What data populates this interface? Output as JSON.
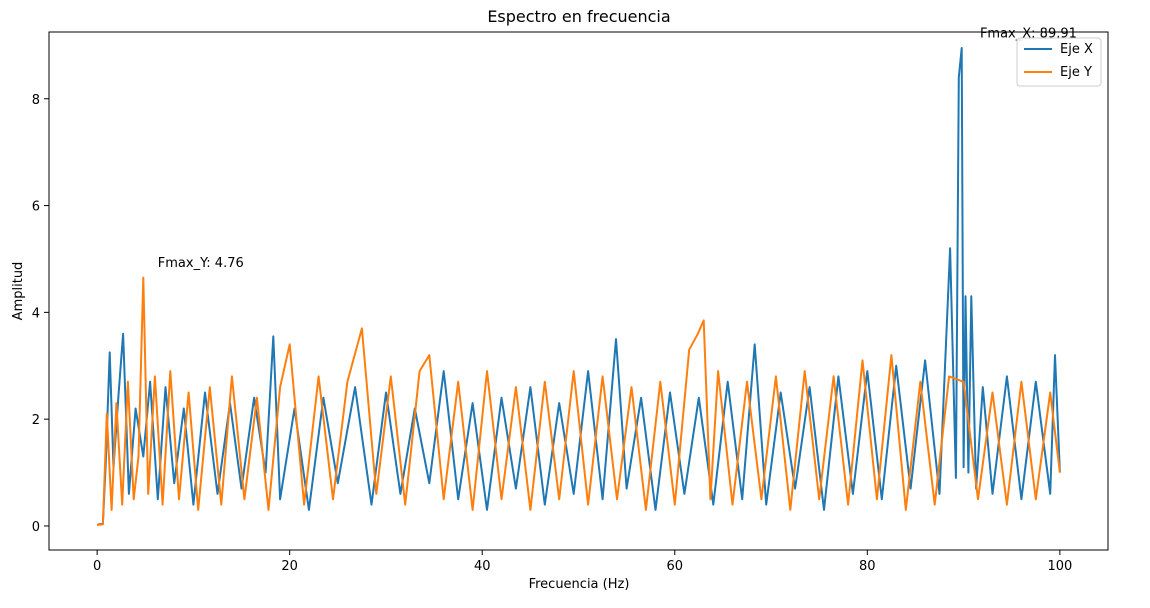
{
  "chart_data": {
    "type": "line",
    "title": "Espectro en frecuencia",
    "xlabel": "Frecuencia (Hz)",
    "ylabel": "Amplitud",
    "xlim": [
      -5,
      105
    ],
    "ylim": [
      -0.45,
      9.25
    ],
    "xticks": [
      0,
      20,
      40,
      60,
      80,
      100
    ],
    "yticks": [
      0,
      2,
      4,
      6,
      8
    ],
    "xtick_labels": [
      "0",
      "20",
      "40",
      "60",
      "80",
      "100"
    ],
    "ytick_labels": [
      "0",
      "2",
      "4",
      "6",
      "8"
    ],
    "grid": false,
    "legend_position": "top-right",
    "series": [
      {
        "name": "Eje X",
        "color": "#1f77b4",
        "x": [
          0,
          0.6,
          0.9,
          1.3,
          1.7,
          2.2,
          2.7,
          3.3,
          4.0,
          4.8,
          5.5,
          6.3,
          7.1,
          8.0,
          9.0,
          10.0,
          11.2,
          12.5,
          13.8,
          15.0,
          16.3,
          17.5,
          18.3,
          19.0,
          20.5,
          22.0,
          23.5,
          25.0,
          26.8,
          28.5,
          30.0,
          31.5,
          33.0,
          34.5,
          36.0,
          37.5,
          39.0,
          40.5,
          42.0,
          43.5,
          45.0,
          46.5,
          48.0,
          49.5,
          51.0,
          52.5,
          53.9,
          55.0,
          56.5,
          58.0,
          59.5,
          61.0,
          62.5,
          64.0,
          65.5,
          67.0,
          68.3,
          69.5,
          71.0,
          72.5,
          74.0,
          75.5,
          77.0,
          78.5,
          80.0,
          81.5,
          83.0,
          84.5,
          86.0,
          87.5,
          88.6,
          89.2,
          89.5,
          89.8,
          90.0,
          90.2,
          90.5,
          90.8,
          91.3,
          92.0,
          93.0,
          94.5,
          96.0,
          97.5,
          99.0,
          99.5,
          100.0
        ],
        "y": [
          0.02,
          0.05,
          1.2,
          3.25,
          1.1,
          2.4,
          3.6,
          0.6,
          2.2,
          1.3,
          2.7,
          0.5,
          2.6,
          0.8,
          2.2,
          0.4,
          2.5,
          0.6,
          2.3,
          0.7,
          2.4,
          1.0,
          3.55,
          0.5,
          2.2,
          0.3,
          2.4,
          0.8,
          2.6,
          0.4,
          2.5,
          0.6,
          2.2,
          0.8,
          2.9,
          0.5,
          2.3,
          0.3,
          2.4,
          0.7,
          2.6,
          0.4,
          2.3,
          0.6,
          2.9,
          0.5,
          3.5,
          0.7,
          2.4,
          0.3,
          2.5,
          0.6,
          2.4,
          0.4,
          2.7,
          0.5,
          3.4,
          0.4,
          2.5,
          0.7,
          2.6,
          0.3,
          2.8,
          0.6,
          2.9,
          0.5,
          3.0,
          0.7,
          3.1,
          0.6,
          5.2,
          0.9,
          8.4,
          8.95,
          1.1,
          4.3,
          1.0,
          4.3,
          0.7,
          2.6,
          0.6,
          2.8,
          0.5,
          2.7,
          0.6,
          3.2,
          1.0
        ]
      },
      {
        "name": "Eje Y",
        "color": "#ff7f0e",
        "x": [
          0,
          0.6,
          1.0,
          1.5,
          2.0,
          2.6,
          3.2,
          3.8,
          4.3,
          4.8,
          5.3,
          6.0,
          6.8,
          7.6,
          8.5,
          9.5,
          10.5,
          11.7,
          12.9,
          14.0,
          15.3,
          16.6,
          17.8,
          19.0,
          20.0,
          21.5,
          23.0,
          24.5,
          26.0,
          27.5,
          29.0,
          30.5,
          32.0,
          33.5,
          34.5,
          36.0,
          37.5,
          39.0,
          40.5,
          42.0,
          43.5,
          45.0,
          46.5,
          48.0,
          49.5,
          51.0,
          52.5,
          54.0,
          55.5,
          57.0,
          58.5,
          60.0,
          61.5,
          62.4,
          63.0,
          63.7,
          64.5,
          66.0,
          67.5,
          69.0,
          70.5,
          72.0,
          73.5,
          75.0,
          76.5,
          78.0,
          79.5,
          81.0,
          82.5,
          84.0,
          85.5,
          87.0,
          88.5,
          90.0,
          91.5,
          93.0,
          94.5,
          96.0,
          97.5,
          99.0,
          100.0
        ],
        "y": [
          0.02,
          0.03,
          2.1,
          0.3,
          2.3,
          0.4,
          2.7,
          0.5,
          1.3,
          4.65,
          0.6,
          2.8,
          0.4,
          2.9,
          0.5,
          2.5,
          0.3,
          2.6,
          0.4,
          2.8,
          0.5,
          2.4,
          0.3,
          2.6,
          3.4,
          0.4,
          2.8,
          0.5,
          2.7,
          3.7,
          0.6,
          2.8,
          0.4,
          2.9,
          3.2,
          0.5,
          2.7,
          0.3,
          2.9,
          0.5,
          2.6,
          0.3,
          2.7,
          0.5,
          2.9,
          0.4,
          2.8,
          0.5,
          2.6,
          0.3,
          2.7,
          0.4,
          3.3,
          3.6,
          3.85,
          0.5,
          2.9,
          0.4,
          2.7,
          0.5,
          2.8,
          0.3,
          2.9,
          0.5,
          2.8,
          0.4,
          3.1,
          0.5,
          3.2,
          0.3,
          2.7,
          0.4,
          2.8,
          2.7,
          0.5,
          2.5,
          0.4,
          2.7,
          0.5,
          2.5,
          1.0
        ]
      }
    ],
    "annotations": [
      {
        "text": "Fmax_Y: 4.76",
        "x": 6.3,
        "y": 4.85
      },
      {
        "text": "Fmax_X: 89.91",
        "x": 91.7,
        "y": 9.15
      }
    ]
  }
}
